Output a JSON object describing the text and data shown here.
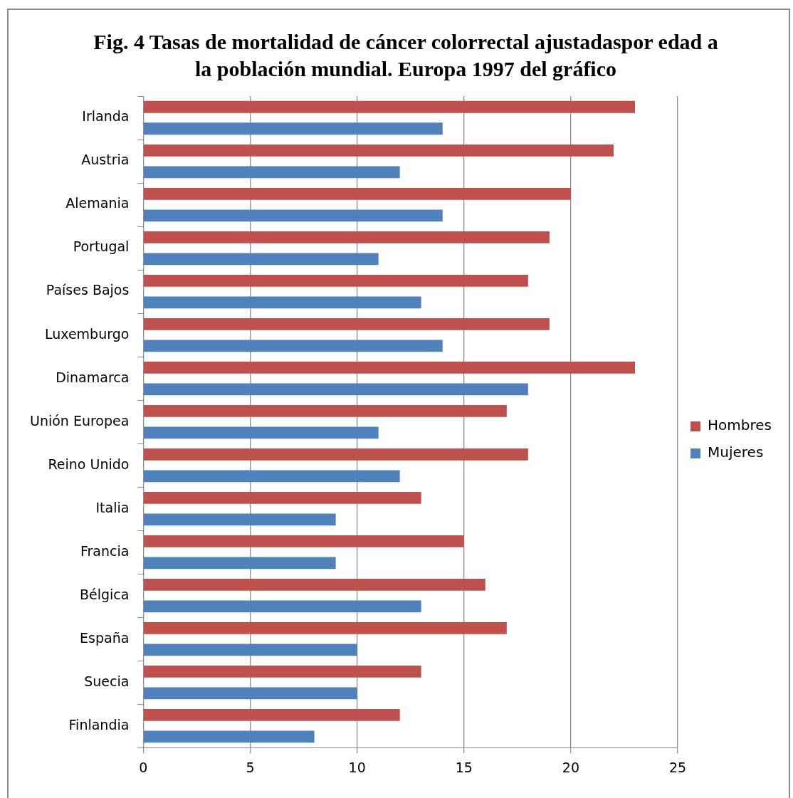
{
  "chart_data": {
    "type": "bar",
    "orientation": "horizontal",
    "title": "Fig. 4 Tasas de mortalidad de cáncer colorrectal ajustadaspor edad a la población mundial. Europa 1997 del gráfico",
    "categories": [
      "Irlanda",
      "Austria",
      "Alemania",
      "Portugal",
      "Países Bajos",
      "Luxemburgo",
      "Dinamarca",
      "Unión Europea",
      "Reino Unido",
      "Italia",
      "Francia",
      "Bélgica",
      "España",
      "Suecia",
      "Finlandia"
    ],
    "series": [
      {
        "name": "Hombres",
        "color": "#c0504d",
        "values": [
          23,
          22,
          20,
          19,
          18,
          19,
          23,
          17,
          18,
          13,
          15,
          16,
          17,
          13,
          12
        ]
      },
      {
        "name": "Mujeres",
        "color": "#4f81bd",
        "values": [
          14,
          12,
          14,
          11,
          13,
          14,
          18,
          11,
          12,
          9,
          9,
          13,
          10,
          10,
          8
        ]
      }
    ],
    "xlim": [
      0,
      25
    ],
    "xticks": [
      0,
      5,
      10,
      15,
      20,
      25
    ],
    "grid": "x",
    "legend": "right"
  }
}
